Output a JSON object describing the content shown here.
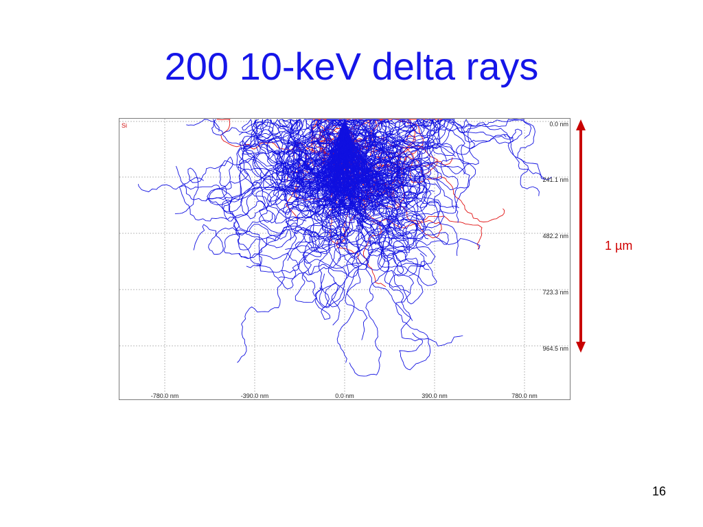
{
  "slide": {
    "title": "200 10-keV delta rays",
    "page_number": "16",
    "scale_label": "1 µm"
  },
  "plot": {
    "material": "Si",
    "x_ticks": [
      {
        "label": "-780.0 nm"
      },
      {
        "label": "-390.0 nm"
      },
      {
        "label": "0.0 nm"
      },
      {
        "label": "390.0 nm"
      },
      {
        "label": "780.0 nm"
      }
    ],
    "depth_ticks": [
      {
        "label": "0.0 nm"
      },
      {
        "label": "241.1 nm"
      },
      {
        "label": "482.2 nm"
      },
      {
        "label": "723.3 nm"
      },
      {
        "label": "964.5 nm"
      }
    ],
    "track_count": 200,
    "colors": {
      "electron_tracks": "#1010e0",
      "backscatter_tracks": "#e01010",
      "grid": "#b8b8b8",
      "scale_bar": "#c80000",
      "title": "#1515e8"
    }
  }
}
